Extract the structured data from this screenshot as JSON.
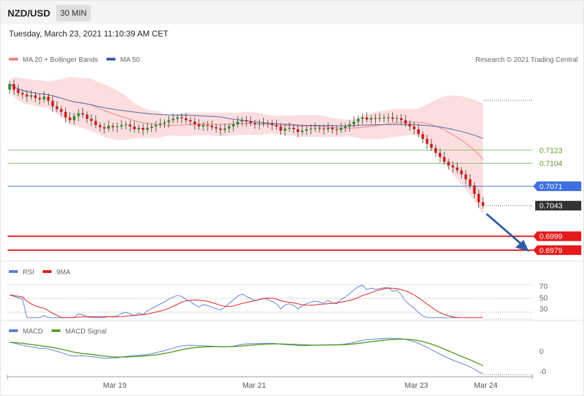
{
  "header": {
    "symbol": "NZD/USD",
    "timeframe": "30 MIN"
  },
  "timestamp": "Tuesday, March 23, 2021 11:10:39 AM CET",
  "copyright": "Research © 2021 Trading Central",
  "colors": {
    "bull": "#2e8b2e",
    "bear": "#cc1f1f",
    "band": "#fbd3d3",
    "ma20": "#f08080",
    "ma50": "#4a66aa",
    "support": "#e41a1a",
    "pivot": "#3d6fe0",
    "resistance": "#86c46a",
    "current": "#333333",
    "rsi": "#5b7fd6",
    "rsi_ma": "#e41a1a",
    "macd": "#5b7fd6",
    "macd_signal": "#5aa02c"
  },
  "chart_data": [
    {
      "type": "candlestick",
      "panel": "price",
      "legend": [
        {
          "name": "MA 20 + Bollinger Bands",
          "color": "#f08080"
        },
        {
          "name": "MA 50",
          "color": "#3a5ea0"
        }
      ],
      "x_labels": [
        "Mar 19",
        "Mar 21",
        "Mar 23",
        "Mar 24"
      ],
      "ylim": [
        0.6965,
        0.7245
      ],
      "levels": [
        {
          "value": "0.7123",
          "kind": "resistance"
        },
        {
          "value": "0.7104",
          "kind": "resistance"
        },
        {
          "value": "0.7071",
          "kind": "pivot"
        },
        {
          "value": "0.7043",
          "kind": "current"
        },
        {
          "value": "0.6999",
          "kind": "support"
        },
        {
          "value": "0.6979",
          "kind": "support"
        }
      ],
      "close": [
        0.7218,
        0.721,
        0.7205,
        0.7203,
        0.72,
        0.7202,
        0.7198,
        0.7196,
        0.72,
        0.7194,
        0.7186,
        0.7182,
        0.7178,
        0.717,
        0.7166,
        0.7172,
        0.7176,
        0.7174,
        0.7168,
        0.7165,
        0.7159,
        0.7156,
        0.7154,
        0.7158,
        0.7156,
        0.7157,
        0.7159,
        0.716,
        0.7157,
        0.7153,
        0.7155,
        0.7152,
        0.7155,
        0.7157,
        0.7159,
        0.7161,
        0.7163,
        0.7166,
        0.7168,
        0.717,
        0.7169,
        0.7166,
        0.7164,
        0.716,
        0.7157,
        0.7159,
        0.7158,
        0.7156,
        0.7154,
        0.7152,
        0.7154,
        0.7157,
        0.716,
        0.7164,
        0.7166,
        0.7164,
        0.7162,
        0.716,
        0.7161,
        0.7162,
        0.7161,
        0.7159,
        0.7157,
        0.7151,
        0.7154,
        0.7155,
        0.7153,
        0.7149,
        0.7151,
        0.7153,
        0.7154,
        0.7155,
        0.7154,
        0.7153,
        0.7155,
        0.7153,
        0.7152,
        0.7155,
        0.7157,
        0.716,
        0.7164,
        0.7168,
        0.717,
        0.7167,
        0.7169,
        0.7168,
        0.7169,
        0.717,
        0.717,
        0.7168,
        0.7169,
        0.7166,
        0.7161,
        0.7157,
        0.7153,
        0.7146,
        0.7139,
        0.7132,
        0.7126,
        0.7119,
        0.7113,
        0.7106,
        0.7101,
        0.7098,
        0.7094,
        0.7088,
        0.7081,
        0.7072,
        0.706,
        0.7048,
        0.7043
      ]
    },
    {
      "type": "line",
      "panel": "rsi",
      "legend": [
        {
          "name": "RSI",
          "color": "#5b7fd6"
        },
        {
          "name": "9MA",
          "color": "#e41a1a"
        }
      ],
      "y_ticks": [
        "70",
        "50",
        "30"
      ],
      "ylim": [
        20,
        80
      ]
    },
    {
      "type": "line",
      "panel": "macd",
      "legend": [
        {
          "name": "MACD",
          "color": "#5b7fd6"
        },
        {
          "name": "MACD Signal",
          "color": "#5aa02c"
        }
      ],
      "y_ticks": [
        "0",
        "-0"
      ]
    }
  ]
}
